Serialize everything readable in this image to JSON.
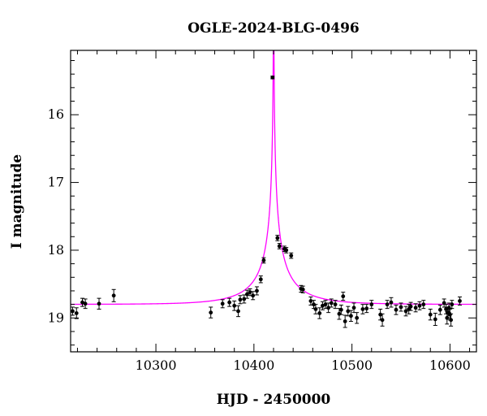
{
  "chart_data": {
    "type": "scatter",
    "title": "OGLE-2024-BLG-0496",
    "xlabel": "HJD - 2450000",
    "ylabel": "I magnitude",
    "xlim": [
      10213,
      10627
    ],
    "ylim": [
      19.5,
      15.05
    ],
    "y_inverted": true,
    "x_ticks": [
      10300,
      10400,
      10500,
      10600
    ],
    "y_ticks": [
      16,
      17,
      18,
      19
    ],
    "grid": false,
    "legend": "none",
    "colors": {
      "data": "#000000",
      "model": "#ff00ff"
    },
    "model": {
      "t0": 10420.1,
      "u0": 0.0004,
      "tE": 52,
      "fs": 0.0085,
      "fb": 0.0295,
      "base_mag": 18.8,
      "color": "#ff00ff"
    },
    "series": [
      {
        "points": [
          [
            10215,
            18.9,
            0.06
          ],
          [
            10219,
            18.93,
            0.08
          ],
          [
            10225,
            18.77,
            0.06
          ],
          [
            10228,
            18.79,
            0.07
          ],
          [
            10242,
            18.79,
            0.08
          ],
          [
            10257,
            18.67,
            0.09
          ],
          [
            10356,
            18.92,
            0.08
          ],
          [
            10368,
            18.79,
            0.06
          ],
          [
            10375,
            18.77,
            0.06
          ],
          [
            10380,
            18.82,
            0.07
          ],
          [
            10384,
            18.9,
            0.08
          ],
          [
            10386,
            18.73,
            0.06
          ],
          [
            10390,
            18.72,
            0.06
          ],
          [
            10393,
            18.65,
            0.06
          ],
          [
            10396,
            18.62,
            0.05
          ],
          [
            10399,
            18.67,
            0.06
          ],
          [
            10403,
            18.6,
            0.06
          ],
          [
            10407,
            18.43,
            0.05
          ],
          [
            10410,
            18.15,
            0.04
          ],
          [
            10419,
            15.45,
            0.02
          ],
          [
            10424,
            17.82,
            0.04
          ],
          [
            10426,
            17.94,
            0.04
          ],
          [
            10431,
            17.98,
            0.04
          ],
          [
            10433,
            18.0,
            0.04
          ],
          [
            10438,
            18.08,
            0.04
          ],
          [
            10448,
            18.57,
            0.05
          ],
          [
            10450,
            18.58,
            0.05
          ],
          [
            10458,
            18.75,
            0.06
          ],
          [
            10461,
            18.8,
            0.06
          ],
          [
            10463,
            18.87,
            0.07
          ],
          [
            10467,
            18.93,
            0.08
          ],
          [
            10470,
            18.82,
            0.06
          ],
          [
            10473,
            18.8,
            0.06
          ],
          [
            10476,
            18.85,
            0.07
          ],
          [
            10479,
            18.78,
            0.06
          ],
          [
            10483,
            18.8,
            0.06
          ],
          [
            10487,
            18.94,
            0.08
          ],
          [
            10489,
            18.88,
            0.07
          ],
          [
            10491,
            18.68,
            0.06
          ],
          [
            10493,
            19.05,
            0.09
          ],
          [
            10496,
            18.9,
            0.07
          ],
          [
            10499,
            18.97,
            0.08
          ],
          [
            10502,
            18.85,
            0.07
          ],
          [
            10505,
            19.0,
            0.08
          ],
          [
            10511,
            18.87,
            0.07
          ],
          [
            10515,
            18.86,
            0.06
          ],
          [
            10520,
            18.8,
            0.06
          ],
          [
            10529,
            18.95,
            0.08
          ],
          [
            10531,
            19.03,
            0.09
          ],
          [
            10536,
            18.8,
            0.06
          ],
          [
            10540,
            18.77,
            0.07
          ],
          [
            10545,
            18.88,
            0.07
          ],
          [
            10550,
            18.84,
            0.06
          ],
          [
            10555,
            18.9,
            0.07
          ],
          [
            10558,
            18.87,
            0.07
          ],
          [
            10560,
            18.83,
            0.06
          ],
          [
            10565,
            18.85,
            0.06
          ],
          [
            10569,
            18.82,
            0.06
          ],
          [
            10573,
            18.8,
            0.06
          ],
          [
            10580,
            18.95,
            0.08
          ],
          [
            10585,
            19.02,
            0.09
          ],
          [
            10590,
            18.88,
            0.07
          ],
          [
            10594,
            18.78,
            0.06
          ],
          [
            10596,
            18.87,
            0.07
          ],
          [
            10597,
            19.0,
            0.09
          ],
          [
            10598,
            18.92,
            0.08
          ],
          [
            10599,
            18.85,
            0.07
          ],
          [
            10600,
            18.95,
            0.08
          ],
          [
            10601,
            19.03,
            0.09
          ],
          [
            10602,
            18.8,
            0.06
          ],
          [
            10610,
            18.75,
            0.06
          ]
        ]
      }
    ]
  }
}
